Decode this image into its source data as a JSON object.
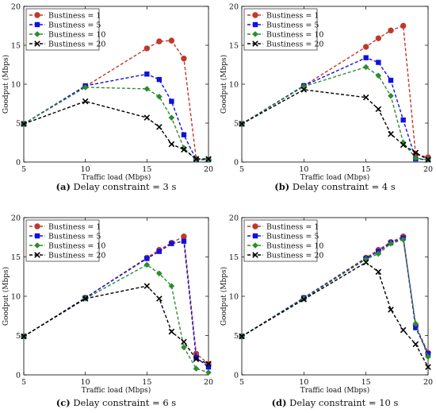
{
  "chart_data": [
    {
      "type": "line",
      "panel": "a",
      "caption_label": "(a)",
      "caption_text": "Delay constraint = 3 s",
      "xlabel": "Traffic load (Mbps)",
      "ylabel": "Goodput (Mbps)",
      "xlim": [
        5,
        20
      ],
      "ylim": [
        0,
        20
      ],
      "xticks": [
        5,
        10,
        15,
        20
      ],
      "yticks": [
        0,
        5,
        10,
        15,
        20
      ],
      "grid": false,
      "legend_position": "top-left",
      "x": [
        5,
        10,
        15,
        16,
        17,
        18,
        19,
        20
      ],
      "series": [
        {
          "name": "Bustiness = 1",
          "color": "#c0392b",
          "marker": "circle",
          "values": [
            4.9,
            9.7,
            14.6,
            15.5,
            15.6,
            13.3,
            0.4,
            0.3
          ]
        },
        {
          "name": "Bustiness = 5",
          "color": "#1010e0",
          "marker": "square",
          "values": [
            4.9,
            9.8,
            11.3,
            10.6,
            7.8,
            3.5,
            0.3,
            0.3
          ]
        },
        {
          "name": "Bustiness = 10",
          "color": "#2e8b2e",
          "marker": "diamond",
          "values": [
            4.9,
            9.6,
            9.4,
            8.4,
            5.7,
            1.8,
            0.3,
            0.3
          ]
        },
        {
          "name": "Bustiness = 20",
          "color": "#000000",
          "marker": "x",
          "values": [
            4.9,
            7.8,
            5.7,
            4.5,
            2.3,
            1.6,
            0.4,
            0.4
          ]
        }
      ]
    },
    {
      "type": "line",
      "panel": "b",
      "caption_label": "(b)",
      "caption_text": "Delay constraint = 4 s",
      "xlabel": "Traffic load (Mbps)",
      "ylabel": "Goodput (Mbps)",
      "xlim": [
        5,
        20
      ],
      "ylim": [
        0,
        20
      ],
      "xticks": [
        5,
        10,
        15,
        20
      ],
      "yticks": [
        0,
        5,
        10,
        15,
        20
      ],
      "grid": false,
      "legend_position": "top-left",
      "x": [
        5,
        10,
        15,
        16,
        17,
        18,
        19,
        20
      ],
      "series": [
        {
          "name": "Bustiness = 1",
          "color": "#c0392b",
          "marker": "circle",
          "values": [
            4.9,
            9.8,
            14.8,
            15.9,
            16.9,
            17.5,
            1.0,
            0.6
          ]
        },
        {
          "name": "Bustiness = 5",
          "color": "#1010e0",
          "marker": "square",
          "values": [
            4.9,
            9.8,
            13.4,
            12.8,
            10.5,
            5.4,
            0.4,
            0.3
          ]
        },
        {
          "name": "Bustiness = 10",
          "color": "#2e8b2e",
          "marker": "diamond",
          "values": [
            4.9,
            9.7,
            12.2,
            11.1,
            8.5,
            2.5,
            0.5,
            0.3
          ]
        },
        {
          "name": "Bustiness = 20",
          "color": "#000000",
          "marker": "x",
          "values": [
            4.9,
            9.3,
            8.3,
            6.8,
            3.6,
            2.2,
            1.2,
            0.3
          ]
        }
      ]
    },
    {
      "type": "line",
      "panel": "c",
      "caption_label": "(c)",
      "caption_text": "Delay constraint = 6 s",
      "xlabel": "Traffic load (Mbps)",
      "ylabel": "Goodput (Mbps)",
      "xlim": [
        5,
        20
      ],
      "ylim": [
        0,
        20
      ],
      "xticks": [
        5,
        10,
        15,
        20
      ],
      "yticks": [
        0,
        5,
        10,
        15,
        20
      ],
      "grid": false,
      "legend_position": "top-left",
      "x": [
        5,
        10,
        15,
        16,
        17,
        18,
        19,
        20
      ],
      "series": [
        {
          "name": "Bustiness = 1",
          "color": "#c0392b",
          "marker": "circle",
          "values": [
            4.9,
            9.8,
            14.9,
            15.9,
            16.8,
            17.6,
            2.7,
            1.4
          ]
        },
        {
          "name": "Bustiness = 5",
          "color": "#1010e0",
          "marker": "square",
          "values": [
            4.9,
            9.8,
            14.8,
            15.7,
            16.7,
            17.0,
            2.2,
            1.0
          ]
        },
        {
          "name": "Bustiness = 10",
          "color": "#2e8b2e",
          "marker": "diamond",
          "values": [
            4.9,
            9.7,
            14.0,
            12.9,
            11.3,
            3.5,
            0.8,
            0.3
          ]
        },
        {
          "name": "Bustiness = 20",
          "color": "#000000",
          "marker": "x",
          "values": [
            4.9,
            9.7,
            11.3,
            9.7,
            5.5,
            4.2,
            2.0,
            1.4
          ]
        }
      ]
    },
    {
      "type": "line",
      "panel": "d",
      "caption_label": "(d)",
      "caption_text": "Delay constraint = 10 s",
      "xlabel": "Traffic load (Mbps)",
      "ylabel": "Goodput (Mbps)",
      "xlim": [
        5,
        20
      ],
      "ylim": [
        0,
        20
      ],
      "xticks": [
        5,
        10,
        15,
        20
      ],
      "yticks": [
        0,
        5,
        10,
        15,
        20
      ],
      "grid": false,
      "legend_position": "top-left",
      "x": [
        5,
        10,
        15,
        16,
        17,
        18,
        19,
        20
      ],
      "series": [
        {
          "name": "Bustiness = 1",
          "color": "#c0392b",
          "marker": "circle",
          "values": [
            4.9,
            9.8,
            14.9,
            15.9,
            16.9,
            17.6,
            6.3,
            2.8
          ]
        },
        {
          "name": "Bustiness = 5",
          "color": "#1010e0",
          "marker": "square",
          "values": [
            4.9,
            9.8,
            14.8,
            15.7,
            16.8,
            17.4,
            6.0,
            2.7
          ]
        },
        {
          "name": "Bustiness = 10",
          "color": "#2e8b2e",
          "marker": "diamond",
          "values": [
            4.9,
            9.7,
            14.7,
            15.4,
            16.7,
            17.2,
            6.5,
            2.3
          ]
        },
        {
          "name": "Bustiness = 20",
          "color": "#000000",
          "marker": "x",
          "values": [
            4.9,
            9.6,
            14.3,
            13.1,
            8.3,
            5.7,
            3.9,
            1.0
          ]
        }
      ]
    }
  ]
}
